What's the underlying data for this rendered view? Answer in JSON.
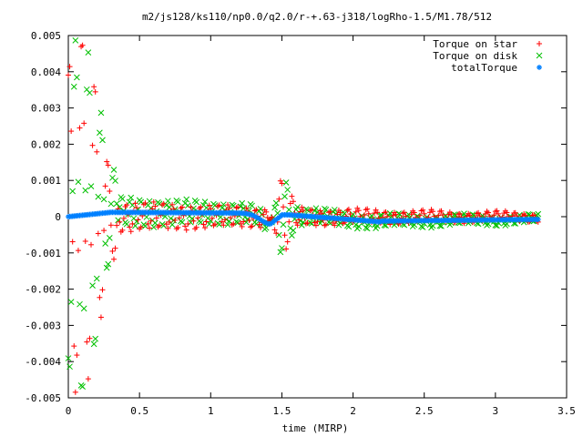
{
  "chart_data": {
    "type": "scatter",
    "title": "m2/js128/ks110/np0.0/q2.0/r-+.63-j318/logRho-1.5/M1.78/512",
    "xlabel": "time (MIRP)",
    "ylabel": "",
    "xlim": [
      0,
      3.5
    ],
    "ylim": [
      -0.005,
      0.005
    ],
    "x_ticks": [
      "0",
      "0.5",
      "1",
      "1.5",
      "2",
      "2.5",
      "3",
      "3.5"
    ],
    "y_ticks": [
      "-0.005",
      "-0.004",
      "-0.003",
      "-0.002",
      "-0.001",
      "0",
      "0.001",
      "0.002",
      "0.003",
      "0.004",
      "0.005"
    ],
    "grid": false,
    "legend_position": "top-right",
    "series": [
      {
        "name": "Torque on star",
        "marker": "+",
        "color": "#ff0000"
      },
      {
        "name": "Torque on disk",
        "marker": "x",
        "color": "#00c000"
      },
      {
        "name": "totalTorque",
        "marker": "*",
        "color": "#0080ff"
      }
    ],
    "x_max_data": 3.3,
    "description_of_shape": "early large oscillations decaying, secondary disturbance near t=1.5, converging to ~0"
  }
}
